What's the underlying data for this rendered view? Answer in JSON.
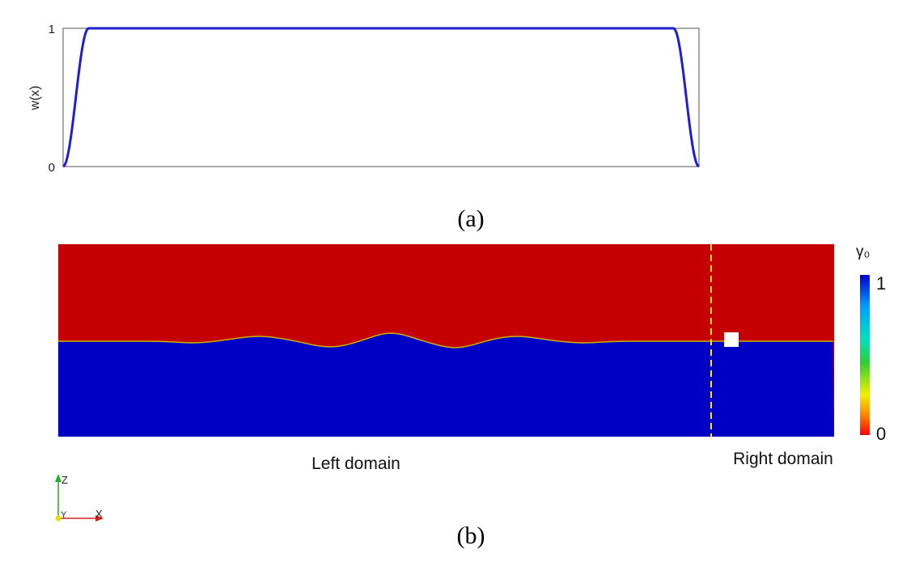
{
  "panel_a": {
    "caption": "(a)"
  },
  "panel_b": {
    "caption": "(b)",
    "left_label": "Left domain",
    "right_label": "Right domain",
    "colorbar": {
      "title": "γ₀",
      "max_label": "1",
      "min_label": "0"
    },
    "axes_triad": {
      "z": "Z",
      "y": "Y",
      "x": "X"
    },
    "colors": {
      "top_phase": "#c40000",
      "bottom_phase": "#0000c4",
      "interface": "#c8b400",
      "divider": "#ffe600",
      "marker": "#ffffff"
    }
  },
  "chart_data": {
    "type": "line",
    "title": "",
    "xlabel": "",
    "ylabel": "w(x)",
    "ylim": [
      0,
      1
    ],
    "yticks": [
      "0",
      "1"
    ],
    "series": [
      {
        "color": "#1f1fd2",
        "x": [
          0,
          0.01,
          0.02,
          0.03,
          0.04,
          0.05,
          0.95,
          0.96,
          0.97,
          0.98,
          0.99,
          1
        ],
        "y": [
          0,
          0.1,
          0.5,
          0.9,
          1,
          1,
          1,
          1,
          0.9,
          0.5,
          0.1,
          0
        ]
      }
    ]
  }
}
